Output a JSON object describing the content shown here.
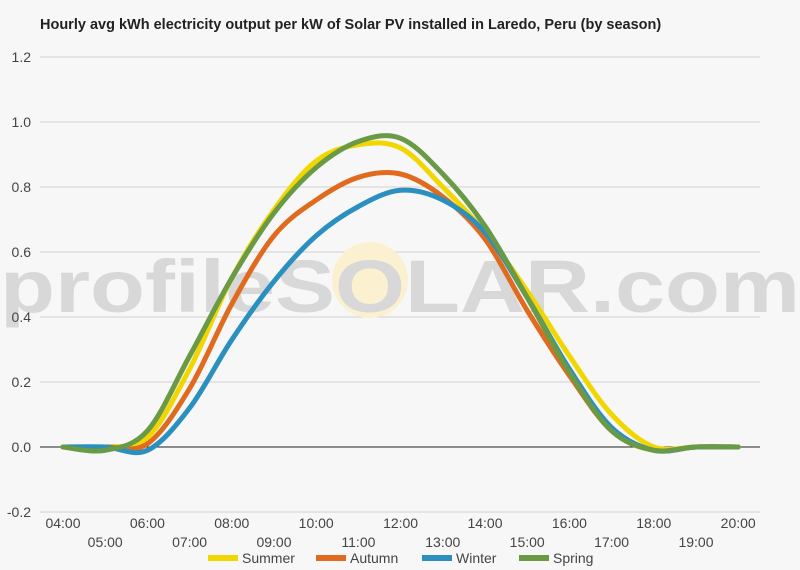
{
  "watermark": {
    "left": "profile",
    "middle": "SOLAR",
    "right": ".com"
  },
  "chart_data": {
    "type": "line",
    "title": "Hourly avg kWh electricity output per kW of Solar PV installed in Laredo, Peru (by season)",
    "xlabel": "",
    "ylabel": "",
    "ylim": [
      -0.2,
      1.2
    ],
    "y_ticks": [
      "-0.2",
      "0.0",
      "0.2",
      "0.4",
      "0.6",
      "0.8",
      "1.0",
      "1.2"
    ],
    "x": [
      "04:00",
      "05:00",
      "06:00",
      "07:00",
      "08:00",
      "09:00",
      "10:00",
      "11:00",
      "12:00",
      "13:00",
      "14:00",
      "15:00",
      "16:00",
      "17:00",
      "18:00",
      "19:00",
      "20:00"
    ],
    "grid": true,
    "legend_position": "bottom",
    "series": [
      {
        "name": "Summer",
        "color": "#f2d600",
        "values": [
          0.0,
          0.0,
          0.03,
          0.24,
          0.52,
          0.73,
          0.88,
          0.93,
          0.92,
          0.8,
          0.66,
          0.48,
          0.28,
          0.1,
          0.0,
          0.0,
          0.0
        ]
      },
      {
        "name": "Autumn",
        "color": "#e06b1f",
        "values": [
          0.0,
          0.0,
          0.01,
          0.18,
          0.44,
          0.65,
          0.76,
          0.83,
          0.84,
          0.77,
          0.64,
          0.42,
          0.22,
          0.05,
          -0.01,
          0.0,
          0.0
        ]
      },
      {
        "name": "Winter",
        "color": "#2b90c0",
        "values": [
          0.0,
          0.0,
          -0.01,
          0.12,
          0.33,
          0.51,
          0.65,
          0.74,
          0.79,
          0.76,
          0.66,
          0.46,
          0.24,
          0.06,
          -0.01,
          0.0,
          0.0
        ]
      },
      {
        "name": "Spring",
        "color": "#6a9a46",
        "values": [
          0.0,
          -0.01,
          0.05,
          0.28,
          0.52,
          0.72,
          0.86,
          0.94,
          0.95,
          0.84,
          0.68,
          0.46,
          0.23,
          0.05,
          -0.01,
          0.0,
          0.0
        ]
      }
    ]
  }
}
